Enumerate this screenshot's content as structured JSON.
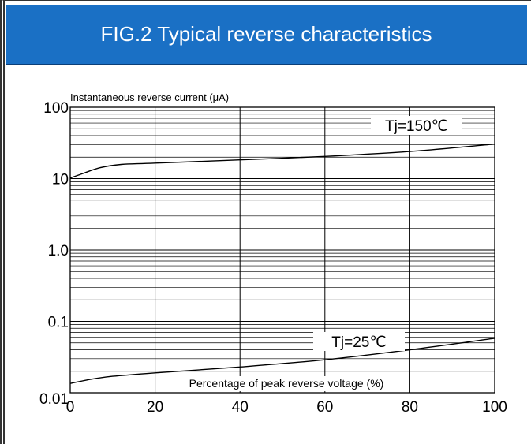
{
  "header": {
    "title": "FIG.2 Typical reverse characteristics",
    "background": "#1a70c5"
  },
  "chart_data": {
    "type": "line",
    "title": "FIG.2 Typical reverse characteristics",
    "ylabel": "Instantaneous reverse current (μA)",
    "xlabel": "Percentage of peak reverse voltage (%)",
    "xlim": [
      0,
      100
    ],
    "ylim": [
      0.01,
      100
    ],
    "yscale": "log",
    "grid": true,
    "x_ticks": [
      0,
      20,
      40,
      60,
      80,
      100
    ],
    "x_tick_labels": [
      "0",
      "20",
      "40",
      "60",
      "80",
      "100"
    ],
    "y_ticks": [
      0.01,
      0.1,
      1,
      10,
      100
    ],
    "y_tick_labels": [
      "0.01",
      "0.1",
      "1.0",
      "10",
      "100"
    ],
    "series": [
      {
        "name": "Tj=150℃",
        "x": [
          0,
          3,
          7,
          12,
          20,
          40,
          60,
          80,
          100
        ],
        "y": [
          10.2,
          11.8,
          14.2,
          15.8,
          16.5,
          18.3,
          20.5,
          24,
          30.5
        ]
      },
      {
        "name": "Tj=25℃",
        "x": [
          0,
          5,
          10,
          20,
          40,
          60,
          80,
          100
        ],
        "y": [
          0.0135,
          0.0155,
          0.017,
          0.019,
          0.023,
          0.029,
          0.04,
          0.058
        ]
      }
    ]
  }
}
